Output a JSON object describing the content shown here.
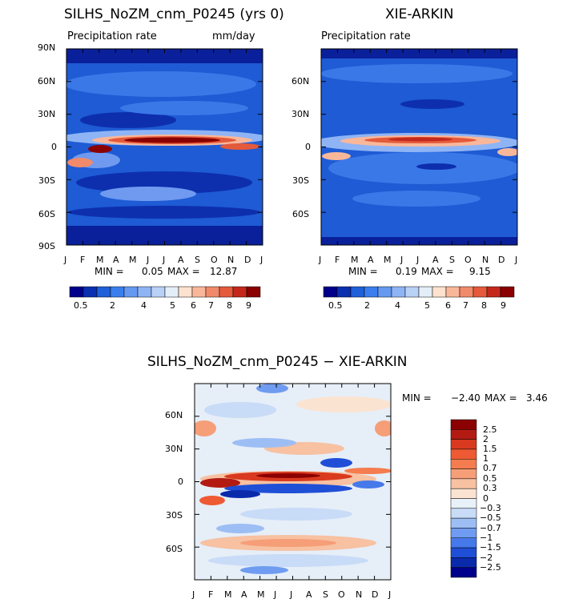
{
  "panels": {
    "left": {
      "title": "SILHS_NoZM_cnm_P0245 (yrs 0)",
      "subtitle": "Precipitation rate",
      "units": "mm/day",
      "stats": {
        "min_label": "MIN =",
        "min": "0.05",
        "max_label": "MAX =",
        "max": "12.87"
      }
    },
    "right": {
      "title": "XIE-ARKIN",
      "subtitle": "Precipitation rate",
      "stats": {
        "min_label": "MIN =",
        "min": "0.19",
        "max_label": "MAX =",
        "max": "9.15"
      }
    },
    "diff": {
      "title": "SILHS_NoZM_cnm_P0245 − XIE-ARKIN",
      "stats": {
        "min_label": "MIN =",
        "min": "−2.40",
        "max_label": "MAX =",
        "max": "3.46"
      }
    }
  },
  "chart_data": [
    {
      "type": "heatmap",
      "title": "SILHS_NoZM_cnm_P0245 (yrs 0)",
      "subtitle": "Precipitation rate",
      "units": "mm/day",
      "x": [
        "J",
        "F",
        "M",
        "A",
        "M",
        "J",
        "J",
        "A",
        "S",
        "O",
        "N",
        "D",
        "J"
      ],
      "y_ticks": [
        "90N",
        "60N",
        "30N",
        "0",
        "30S",
        "60S",
        "90S"
      ],
      "ylim": [
        -90,
        90
      ],
      "levels": [
        "0.5",
        "2",
        "4",
        "5",
        "6",
        "7",
        "8",
        "9"
      ],
      "min": 0.05,
      "max": 12.87
    },
    {
      "type": "heatmap",
      "title": "XIE-ARKIN",
      "subtitle": "Precipitation rate",
      "x": [
        "J",
        "F",
        "M",
        "A",
        "M",
        "J",
        "J",
        "A",
        "S",
        "O",
        "N",
        "D",
        "J"
      ],
      "y_ticks": [
        "60N",
        "30N",
        "0",
        "30S",
        "60S"
      ],
      "levels": [
        "0.5",
        "2",
        "4",
        "5",
        "6",
        "7",
        "8",
        "9"
      ],
      "min": 0.19,
      "max": 9.15
    },
    {
      "type": "heatmap",
      "title": "SILHS_NoZM_cnm_P0245 − XIE-ARKIN",
      "x": [
        "J",
        "F",
        "M",
        "A",
        "M",
        "J",
        "J",
        "A",
        "S",
        "O",
        "N",
        "D",
        "J"
      ],
      "y_ticks": [
        "60N",
        "30N",
        "0",
        "30S",
        "60S"
      ],
      "levels": [
        "2.5",
        "2",
        "1.5",
        "1",
        "0.7",
        "0.5",
        "0.3",
        "0",
        "−0.3",
        "−0.5",
        "−0.7",
        "−1",
        "−1.5",
        "−2",
        "−2.5"
      ],
      "min": -2.4,
      "max": 3.46
    }
  ],
  "colorbar": {
    "top_labels": [
      "0.5",
      "2",
      "4",
      "5",
      "6",
      "7",
      "8",
      "9"
    ],
    "top_colors": [
      "#00008b",
      "#0a2fb0",
      "#1f5fd8",
      "#3a7eee",
      "#6699f0",
      "#8fb4f5",
      "#b9d0f7",
      "#e4eef8",
      "#fde2cf",
      "#f9b79a",
      "#f08a6a",
      "#e45a3b",
      "#c4281c",
      "#8b0000"
    ],
    "diff_labels": [
      "2.5",
      "2",
      "1.5",
      "1",
      "0.7",
      "0.5",
      "0.3",
      "0",
      "−0.3",
      "−0.5",
      "−0.7",
      "−1",
      "−1.5",
      "−2",
      "−2.5"
    ],
    "diff_colors": [
      "#8b0000",
      "#b31b12",
      "#d93a1f",
      "#ee5a33",
      "#f47c4e",
      "#f59e77",
      "#f7c1a2",
      "#fbe3d1",
      "#e9f1f8",
      "#c8dbf7",
      "#9dbef4",
      "#6f9cf0",
      "#4679ea",
      "#1f4fd6",
      "#0a2aac",
      "#00008b"
    ]
  }
}
